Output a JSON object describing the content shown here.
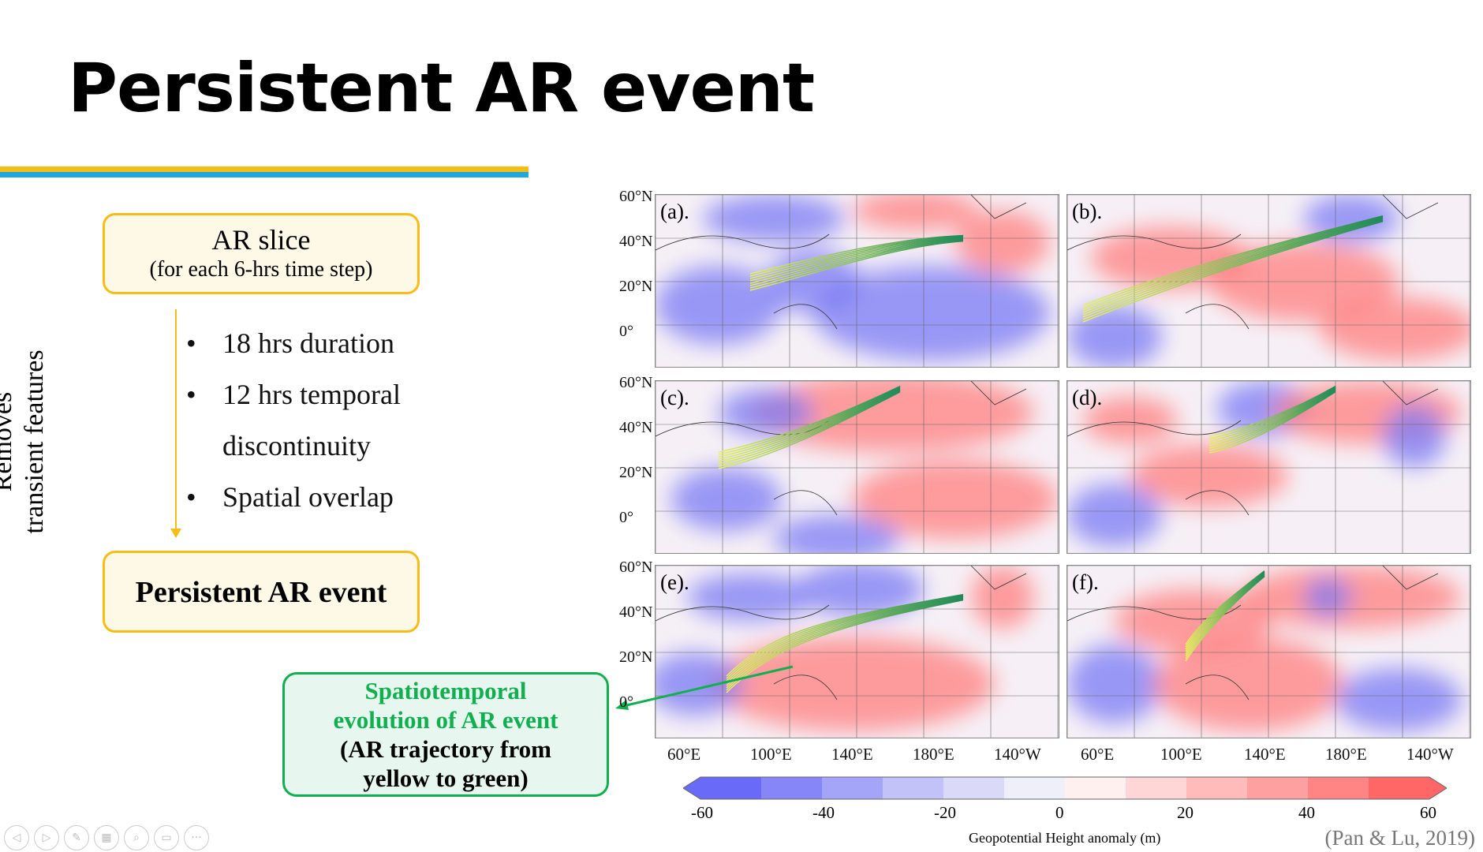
{
  "slide": {
    "title": "Persistent AR event",
    "accent_colors": {
      "yellow": "#f7bd17",
      "blue": "#1fa8e0",
      "green": "#10b050"
    },
    "box_ar_slice": {
      "title": "AR slice",
      "subtitle": "(for each 6-hrs time step)"
    },
    "side_label": [
      "Removes",
      "transient features"
    ],
    "bullets": [
      "18 hrs duration",
      "12 hrs temporal",
      "discontinuity",
      "Spatial overlap"
    ],
    "box_event": {
      "title": "Persistent AR event"
    },
    "callout": {
      "line1": "Spatiotemporal",
      "line2": "evolution of AR event",
      "line3": "(AR trajectory from",
      "line4": "yellow to green)"
    },
    "citation": "(Pan & Lu, 2019)"
  },
  "figure": {
    "panels": [
      "(a).",
      "(b).",
      "(c).",
      "(d).",
      "(e).",
      "(f)."
    ],
    "lat_labels": [
      "60°N",
      "40°N",
      "20°N",
      "0°"
    ],
    "lon_labels": [
      "60°E",
      "100°E",
      "140°E",
      "180°E",
      "140°W"
    ],
    "colorbar": {
      "ticks": [
        "-60",
        "-40",
        "-20",
        "0",
        "20",
        "40",
        "60"
      ],
      "label": "Geopotential Height anomaly (m)",
      "colors": [
        "#6a6af8",
        "#8686f8",
        "#a4a4f8",
        "#c2c2f8",
        "#dadaf8",
        "#efeffa",
        "#fff0f0",
        "#ffd6d6",
        "#ffbaba",
        "#ffa0a0",
        "#ff8484",
        "#ff6666"
      ]
    }
  },
  "controls": [
    "previous-icon",
    "next-icon",
    "pen-icon",
    "slides-icon",
    "zoom-icon",
    "subtitles-icon",
    "more-icon"
  ]
}
